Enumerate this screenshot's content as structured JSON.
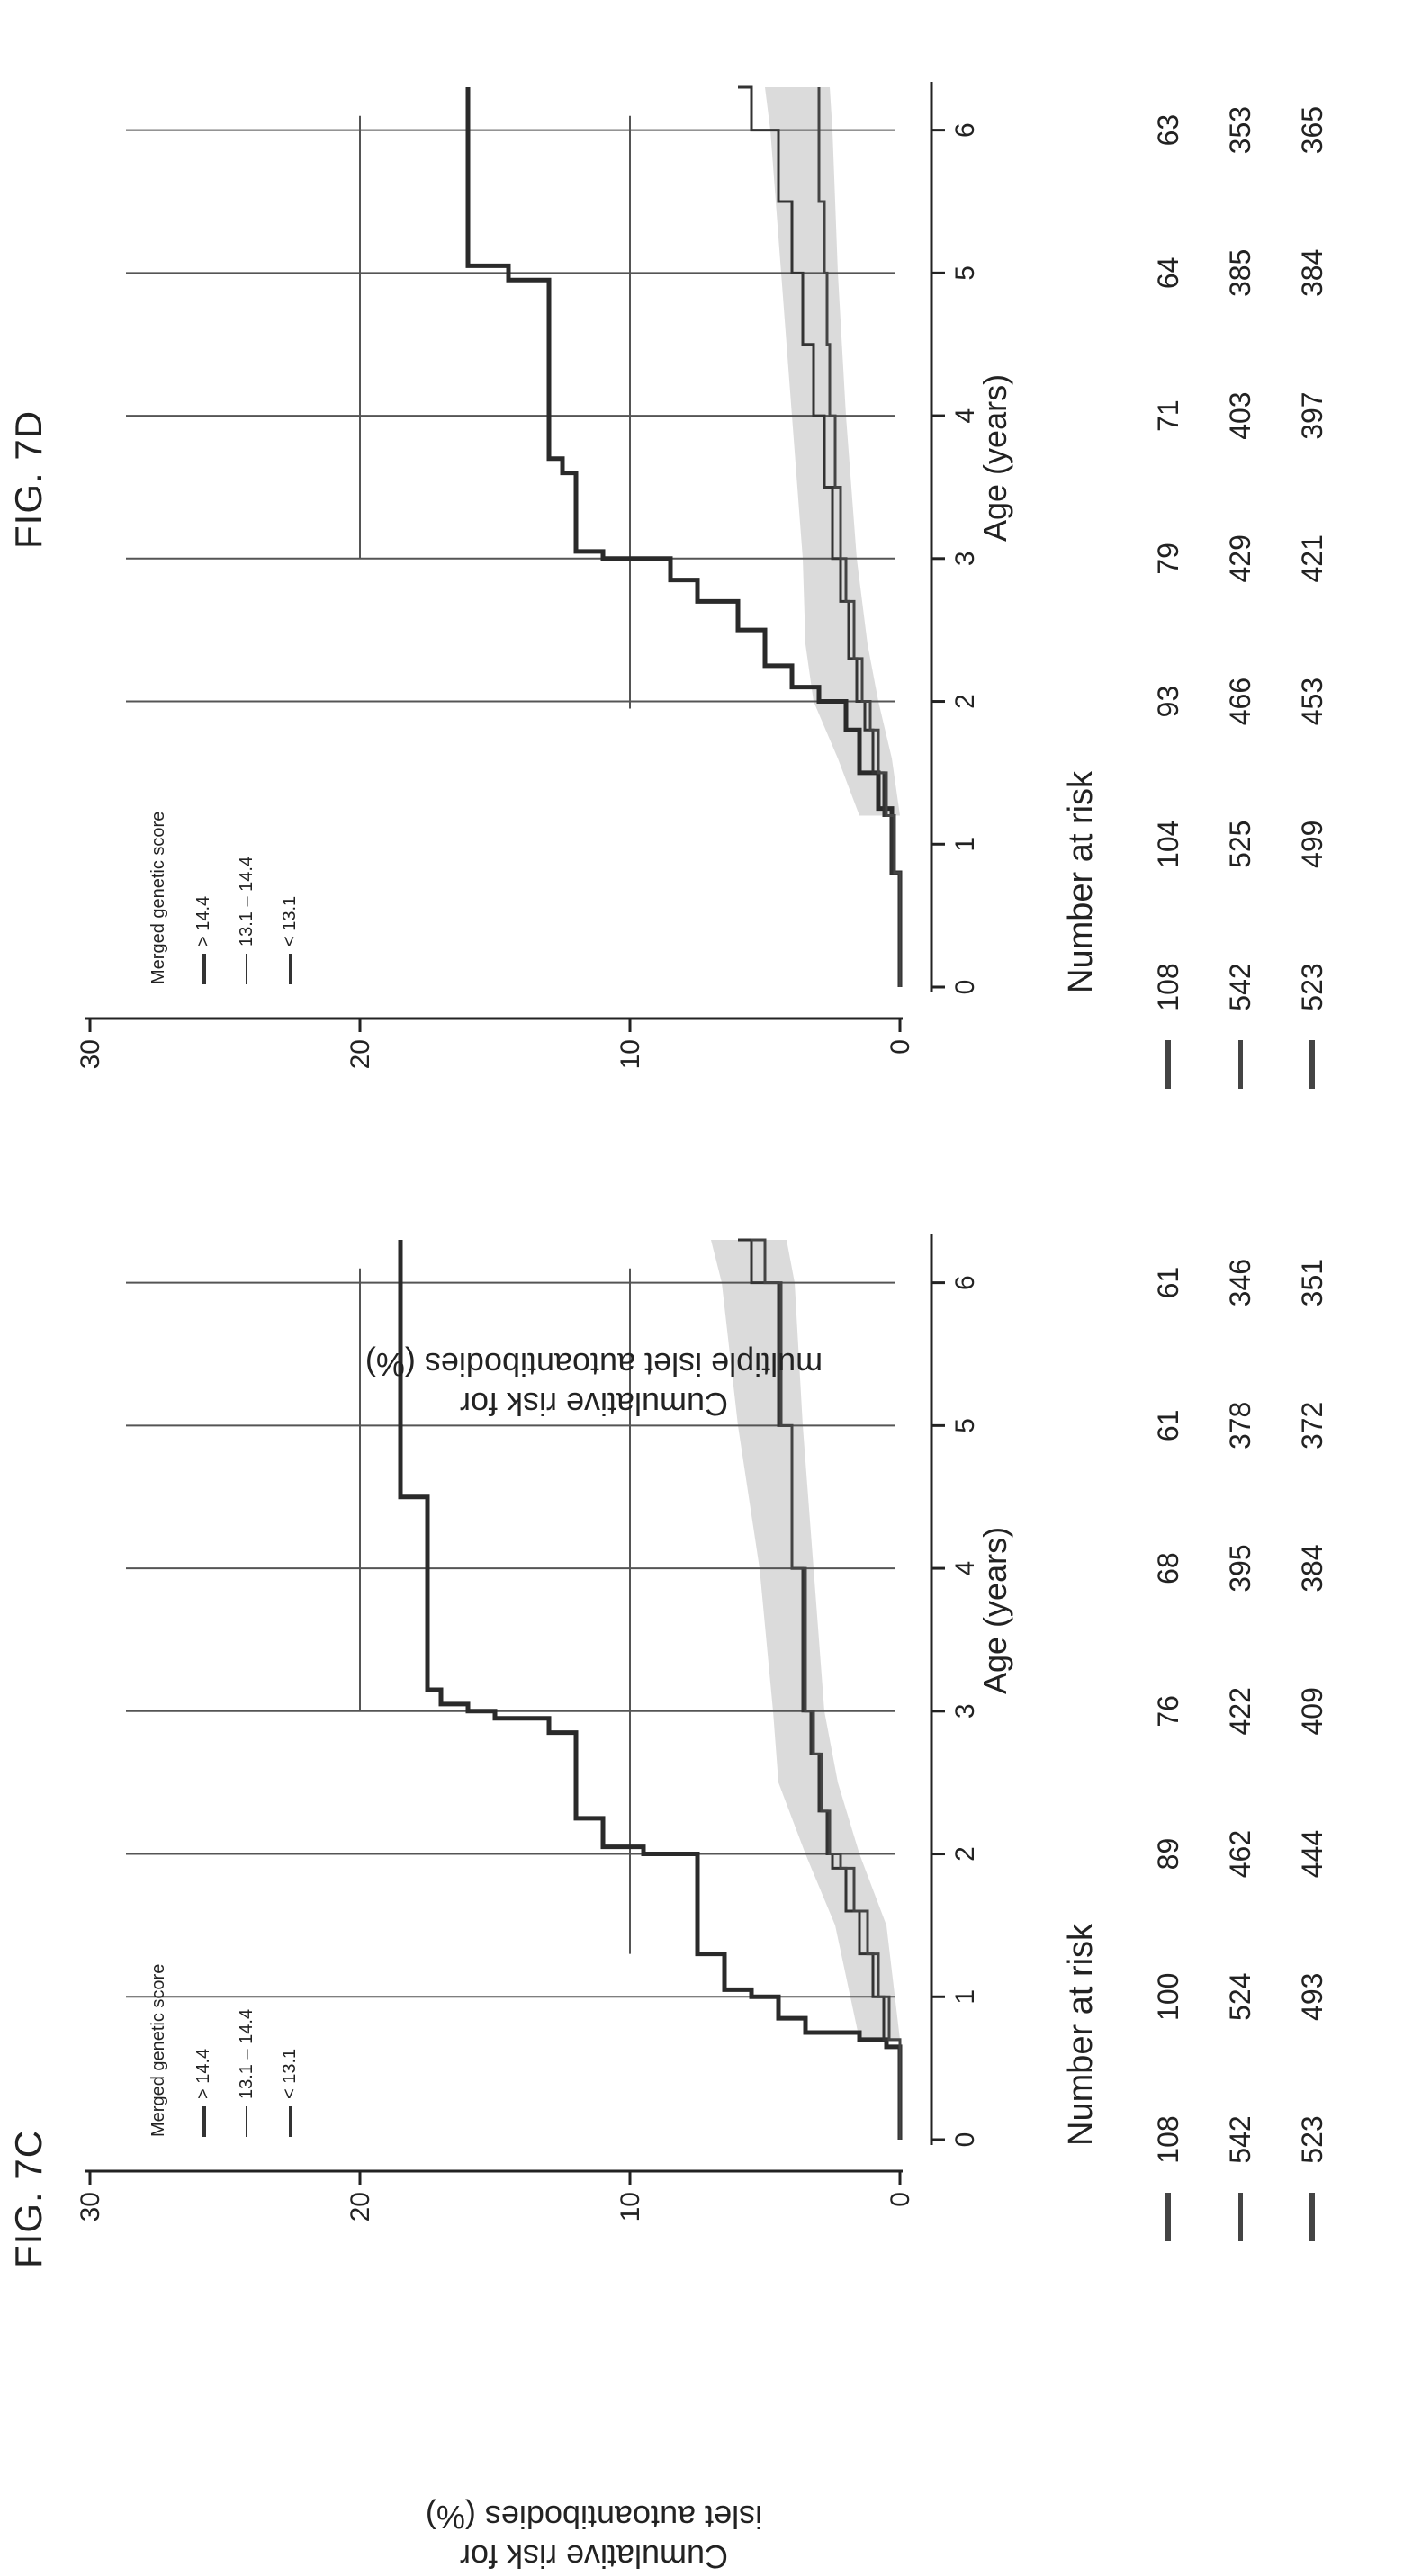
{
  "figures": [
    {
      "id": "7C",
      "label": "FIG. 7C",
      "ylabel_lines": [
        "Cumulative risk for",
        "islet autoantibodies (%)"
      ],
      "legend_title": "Merged genetic score",
      "legend": [
        "> 14.4",
        "13.1 – 14.4",
        "< 13.1"
      ],
      "risk_table": {
        "title": "Number at risk",
        "rows": [
          [
            108,
            100,
            89,
            76,
            68,
            61,
            61
          ],
          [
            542,
            524,
            462,
            422,
            395,
            378,
            346
          ],
          [
            523,
            493,
            444,
            409,
            384,
            372,
            351
          ]
        ]
      }
    },
    {
      "id": "7D",
      "label": "FIG. 7D",
      "ylabel_lines": [
        "Cumulative risk for",
        "multiple islet autoantibodies (%)"
      ],
      "legend_title": "Merged genetic score",
      "legend": [
        "> 14.4",
        "13.1 – 14.4",
        "< 13.1"
      ],
      "risk_table": {
        "title": "Number at risk",
        "rows": [
          [
            108,
            104,
            93,
            79,
            71,
            64,
            63
          ],
          [
            542,
            525,
            466,
            429,
            403,
            385,
            353
          ],
          [
            523,
            499,
            453,
            421,
            397,
            384,
            365
          ]
        ]
      }
    }
  ],
  "chart_data": [
    {
      "type": "line",
      "xlabel": "Age (years)",
      "ylabel": "Cumulative risk for islet autoantibodies (%)",
      "xlim": [
        0,
        6.3
      ],
      "ylim": [
        0,
        30
      ],
      "xticks": [
        0,
        1,
        2,
        3,
        4,
        5,
        6
      ],
      "yticks": [
        0,
        10,
        20,
        30
      ],
      "vertical_lines_x": [
        1,
        2,
        3,
        4,
        5,
        6
      ],
      "horizontal_lines": [
        {
          "y": 10,
          "x_from": 1.3,
          "x_to": 6.1
        },
        {
          "y": 20,
          "x_from": 3.0,
          "x_to": 6.1
        }
      ],
      "series": [
        {
          "name": "> 14.4",
          "color": "#2a2a2a",
          "width": 5,
          "x": [
            0,
            0.65,
            0.7,
            0.75,
            0.85,
            1.0,
            1.05,
            1.25,
            1.3,
            1.5,
            1.85,
            2.0,
            2.05,
            2.25,
            2.7,
            2.85,
            2.95,
            3.0,
            3.05,
            3.15,
            4.5,
            6.3
          ],
          "y": [
            0,
            0.5,
            1.5,
            3.5,
            4.5,
            5.5,
            6.5,
            6.5,
            7.5,
            7.5,
            7.5,
            9.5,
            11.0,
            12.0,
            12.0,
            13.0,
            15.0,
            16.0,
            17.0,
            17.5,
            18.5,
            18.5
          ]
        },
        {
          "name": "13.1 – 14.4",
          "color": "#333333",
          "width": 3,
          "x": [
            0,
            0.7,
            1.0,
            1.3,
            1.6,
            1.9,
            2.0,
            2.3,
            2.7,
            3.0,
            4.0,
            5.0,
            6.0,
            6.3
          ],
          "y": [
            0,
            0.6,
            1.0,
            1.5,
            2.0,
            2.5,
            2.7,
            3.0,
            3.3,
            3.6,
            4.0,
            4.5,
            5.5,
            6.0
          ]
        },
        {
          "name": "< 13.1",
          "color": "#444444",
          "width": 3,
          "x": [
            0,
            0.7,
            1.0,
            1.3,
            1.6,
            1.9,
            2.0,
            2.3,
            2.7,
            3.0,
            4.0,
            5.0,
            6.0,
            6.3
          ],
          "y": [
            0,
            0.4,
            0.8,
            1.2,
            1.7,
            2.2,
            2.6,
            2.9,
            3.2,
            3.5,
            4.0,
            4.4,
            5.0,
            5.5
          ]
        }
      ],
      "confidence_band": {
        "x": [
          0.7,
          1.5,
          2.0,
          2.5,
          3.0,
          4.0,
          5.0,
          6.0,
          6.3
        ],
        "lower": [
          0,
          0.5,
          1.5,
          2.3,
          2.8,
          3.2,
          3.6,
          3.9,
          4.2
        ],
        "upper": [
          1.5,
          2.4,
          3.5,
          4.5,
          4.7,
          5.2,
          6.0,
          6.6,
          7.0
        ]
      }
    },
    {
      "type": "line",
      "xlabel": "Age (years)",
      "ylabel": "Cumulative risk for multiple islet autoantibodies (%)",
      "xlim": [
        0,
        6.3
      ],
      "ylim": [
        0,
        30
      ],
      "xticks": [
        0,
        1,
        2,
        3,
        4,
        5,
        6
      ],
      "yticks": [
        0,
        10,
        20,
        30
      ],
      "vertical_lines_x": [
        2,
        3,
        4,
        5,
        6
      ],
      "horizontal_lines": [
        {
          "y": 10,
          "x_from": 1.95,
          "x_to": 6.1
        },
        {
          "y": 20,
          "x_from": 3.0,
          "x_to": 6.1
        }
      ],
      "series": [
        {
          "name": "> 14.4",
          "color": "#2a2a2a",
          "width": 5,
          "x": [
            0,
            0.8,
            1.25,
            1.5,
            1.8,
            2.0,
            2.1,
            2.25,
            2.5,
            2.7,
            2.85,
            3.0,
            3.05,
            3.6,
            3.7,
            4.95,
            5.05,
            6.3
          ],
          "y": [
            0,
            0.3,
            0.8,
            1.5,
            2.0,
            3.0,
            4.0,
            5.0,
            6.0,
            7.5,
            8.5,
            11.0,
            12.0,
            12.5,
            13.0,
            14.5,
            16.0,
            16.0
          ]
        },
        {
          "name": "13.1 – 14.4",
          "color": "#333333",
          "width": 3,
          "x": [
            0,
            0.8,
            1.2,
            1.5,
            1.8,
            2.0,
            2.3,
            2.7,
            3.0,
            3.5,
            4.0,
            4.5,
            5.0,
            5.5,
            6.0,
            6.3
          ],
          "y": [
            0,
            0.3,
            0.6,
            1.0,
            1.3,
            1.6,
            1.9,
            2.2,
            2.5,
            2.8,
            3.2,
            3.6,
            4.0,
            4.5,
            5.5,
            6.0
          ]
        },
        {
          "name": "< 13.1",
          "color": "#444444",
          "width": 3,
          "x": [
            0,
            0.8,
            1.2,
            1.5,
            1.8,
            2.0,
            2.3,
            2.7,
            3.0,
            3.5,
            4.0,
            4.5,
            5.0,
            5.5,
            6.0,
            6.3
          ],
          "y": [
            0,
            0.2,
            0.5,
            0.8,
            1.1,
            1.4,
            1.7,
            2.0,
            2.2,
            2.4,
            2.6,
            2.7,
            2.8,
            3.0,
            3.0,
            3.0
          ]
        }
      ],
      "confidence_band": {
        "x": [
          1.2,
          1.6,
          2.0,
          2.4,
          3.0,
          4.0,
          5.0,
          6.0,
          6.3
        ],
        "lower": [
          0,
          0.3,
          0.8,
          1.2,
          1.6,
          2.0,
          2.3,
          2.5,
          2.6
        ],
        "upper": [
          1.5,
          2.3,
          3.2,
          3.5,
          3.6,
          4.0,
          4.4,
          4.8,
          5.0
        ]
      }
    }
  ]
}
